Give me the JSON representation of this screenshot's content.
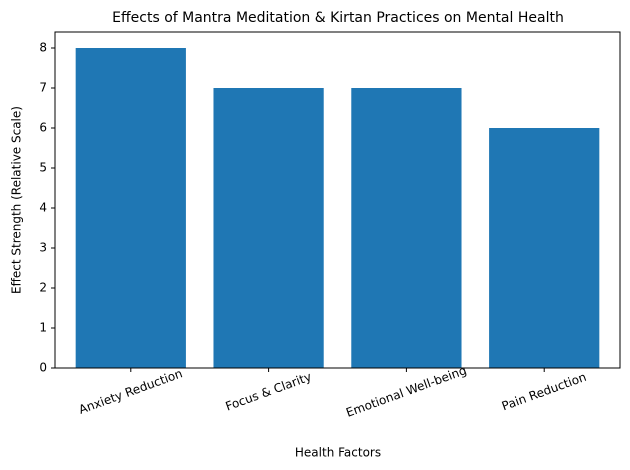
{
  "chart_data": {
    "type": "bar",
    "title": "Effects of Mantra Meditation & Kirtan Practices on Mental Health",
    "x_label": "Health Factors",
    "y_label": "Effect Strength (Relative Scale)",
    "categories": [
      "Anxiety Reduction",
      "Focus & Clarity",
      "Emotional Well-being",
      "Pain Reduction"
    ],
    "values": [
      8,
      7,
      7,
      6
    ],
    "color": "#1f77b4",
    "ylim": [
      0,
      8.4
    ],
    "yticks": [
      0,
      1,
      2,
      3,
      4,
      5,
      6,
      7,
      8
    ],
    "grid": false
  }
}
